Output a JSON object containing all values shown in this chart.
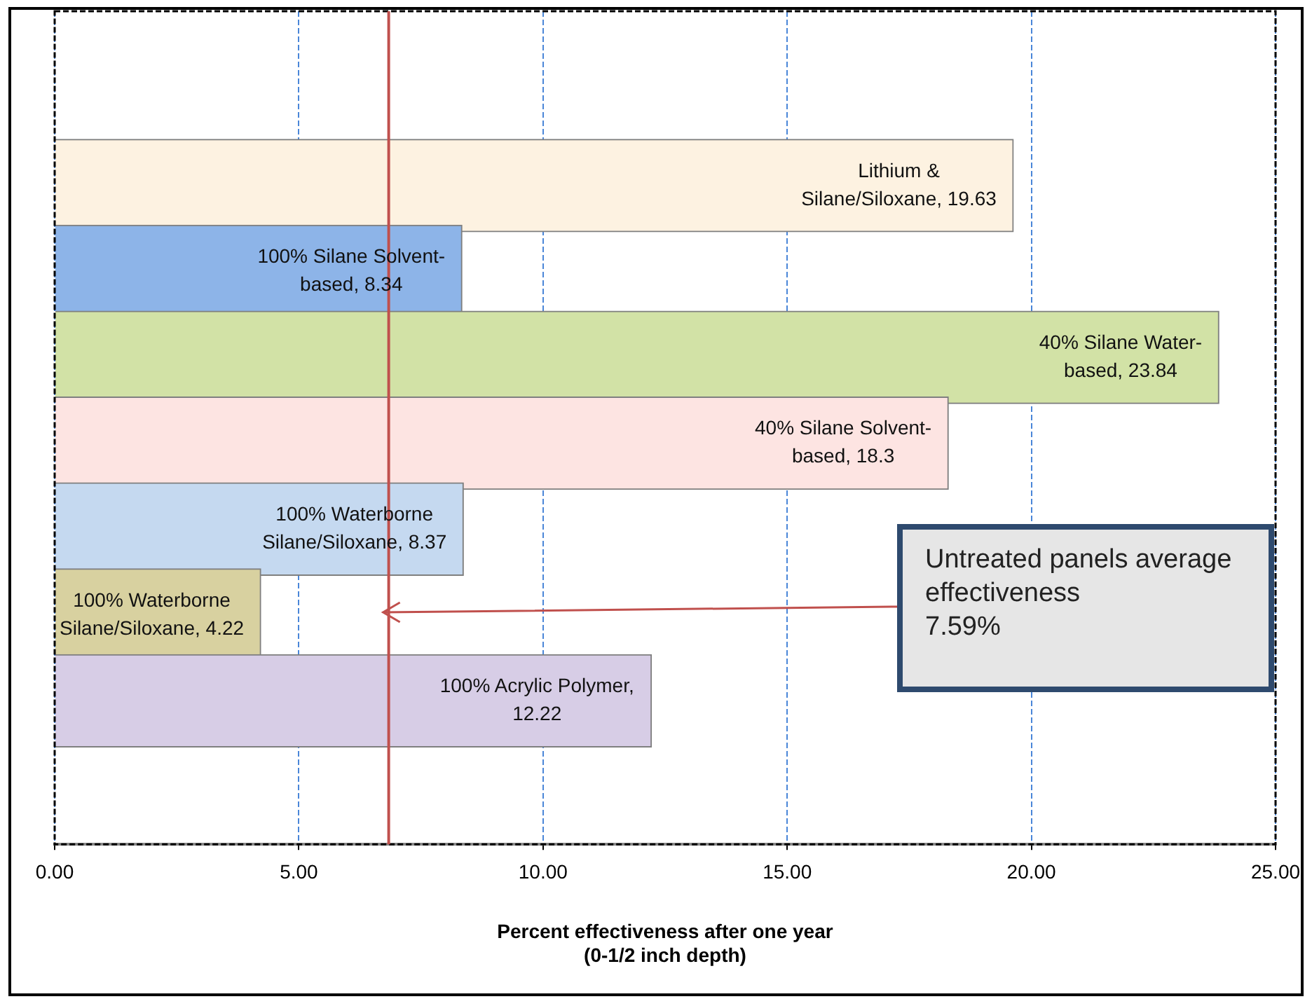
{
  "chart_data": {
    "type": "bar",
    "orientation": "horizontal",
    "categories": [
      null,
      null,
      null,
      null,
      null,
      null,
      null
    ],
    "value_labels": [
      "Lithium & Silane/Siloxane, 19.63",
      "100% Silane Solvent-based, 8.34",
      "40% Silane Water-based, 23.84",
      "40% Silane Solvent-based, 18.3",
      "100% Waterborne Silane/Siloxane, 8.37",
      "100% Waterborne Silane/Siloxane, 4.22",
      "100% Acrylic Polymer, 12.22"
    ],
    "values": [
      19.63,
      8.34,
      23.84,
      18.3,
      8.37,
      4.22,
      12.22
    ],
    "colors": [
      "#fdf2e1",
      "#8db4e8",
      "#d2e2a6",
      "#fde4e2",
      "#c5d9f0",
      "#d8d1a0",
      "#d7cde6"
    ],
    "xlim": [
      0,
      25
    ],
    "xticks": [
      {
        "value": 0,
        "label": "0.00"
      },
      {
        "value": 5,
        "label": "5.00"
      },
      {
        "value": 10,
        "label": "10.00"
      },
      {
        "value": 15,
        "label": "15.00"
      },
      {
        "value": 20,
        "label": "20.00"
      },
      {
        "value": 25,
        "label": "25.00"
      }
    ],
    "xlabel": "Percent effectiveness after one year\n(0-1/2 inch depth)",
    "grid": "x",
    "legend": false,
    "tick_labels": "x",
    "ref_lines": [
      {
        "axis": "x",
        "value": 6.84,
        "color": "#c0504d",
        "label": "Untreated panels average effectiveness\n7.59%"
      }
    ]
  }
}
